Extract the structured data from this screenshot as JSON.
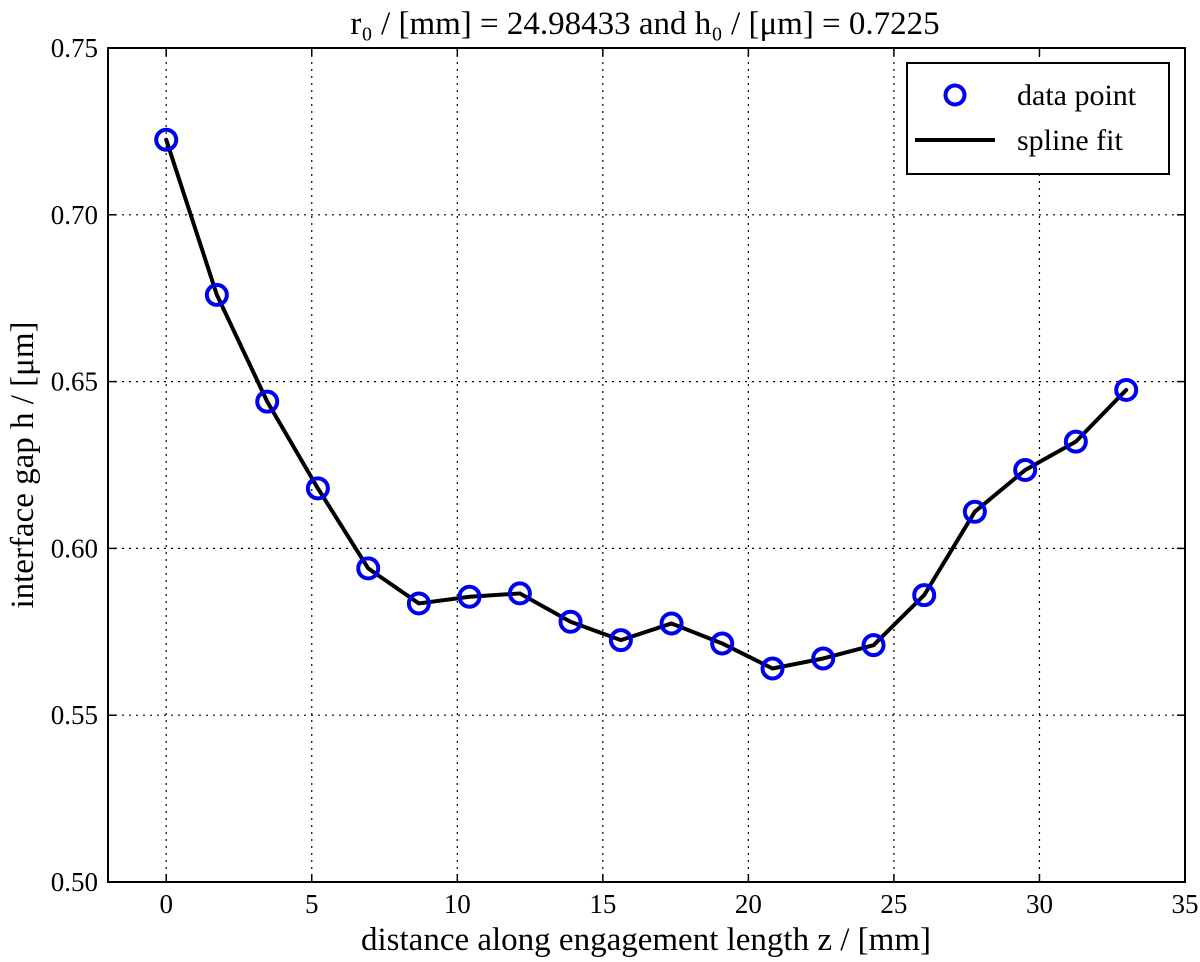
{
  "chart_data": {
    "type": "line",
    "title": "r₀ / [mm] = 24.98433 and h₀ / [μm] = 0.7225",
    "xlabel": "distance along engagement length z / [mm]",
    "ylabel": "interface gap h / [μm]",
    "xlim": [
      -2,
      35
    ],
    "ylim": [
      0.5,
      0.75
    ],
    "xticks": [
      0,
      5,
      10,
      15,
      20,
      25,
      30,
      35
    ],
    "xtick_labels": [
      "0",
      "5",
      "10",
      "15",
      "20",
      "25",
      "30",
      "35"
    ],
    "yticks": [
      0.5,
      0.55,
      0.6,
      0.65,
      0.7,
      0.75
    ],
    "ytick_labels": [
      "0.50",
      "0.55",
      "0.60",
      "0.65",
      "0.70",
      "0.75"
    ],
    "grid": true,
    "legend_position": "top-right",
    "series": [
      {
        "name": "data point",
        "kind": "marker",
        "color": "#0000ee",
        "x": [
          0,
          1.74,
          3.47,
          5.21,
          6.94,
          8.68,
          10.42,
          12.15,
          13.89,
          15.62,
          17.36,
          19.1,
          20.83,
          22.57,
          24.3,
          26.04,
          27.78,
          29.51,
          31.25,
          32.98
        ],
        "y": [
          0.7225,
          0.676,
          0.644,
          0.618,
          0.594,
          0.5835,
          0.5855,
          0.5865,
          0.578,
          0.5725,
          0.5775,
          0.5715,
          0.564,
          0.567,
          0.571,
          0.586,
          0.611,
          0.6235,
          0.632,
          0.6475
        ]
      },
      {
        "name": "spline fit",
        "kind": "line",
        "color": "#000000",
        "x": [
          0,
          1.74,
          3.47,
          5.21,
          6.94,
          8.68,
          10.42,
          12.15,
          13.89,
          15.62,
          17.36,
          19.1,
          20.83,
          22.57,
          24.3,
          26.04,
          27.78,
          29.51,
          31.25,
          32.98
        ],
        "y": [
          0.7225,
          0.676,
          0.644,
          0.618,
          0.594,
          0.5835,
          0.5855,
          0.5865,
          0.578,
          0.5725,
          0.5775,
          0.5715,
          0.564,
          0.567,
          0.571,
          0.586,
          0.611,
          0.6235,
          0.632,
          0.6475
        ]
      }
    ]
  }
}
